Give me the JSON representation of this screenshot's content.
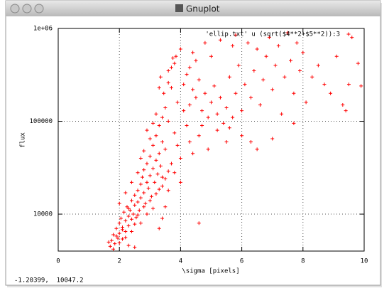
{
  "window": {
    "title": "Gnuplot",
    "status": "-1.20399,  10047.2"
  },
  "chart_data": {
    "type": "scatter",
    "xlabel": "\\sigma [pixels]",
    "ylabel": "flux",
    "xlim": [
      0,
      10
    ],
    "xticks": [
      0,
      2,
      4,
      6,
      8,
      10
    ],
    "ylim": [
      4000,
      1000000
    ],
    "yticks": [
      {
        "value": 1000000,
        "label": "1e+06"
      },
      100000,
      10000
    ],
    "log_y": true,
    "grid": true,
    "legend": "upper right",
    "series": [
      {
        "name": "'ellip.txt' u (sqrt($4**2+$5**2)):3",
        "color": "#ff0000",
        "x": [
          1.7,
          1.75,
          1.8,
          1.85,
          1.9,
          1.95,
          2.0,
          2.0,
          2.05,
          2.1,
          2.1,
          2.15,
          2.2,
          2.2,
          2.25,
          2.3,
          2.3,
          2.35,
          2.4,
          2.4,
          2.45,
          2.5,
          2.5,
          2.55,
          2.6,
          2.6,
          2.65,
          2.7,
          2.7,
          2.75,
          2.8,
          2.8,
          2.85,
          2.9,
          2.9,
          2.95,
          3.0,
          3.0,
          3.05,
          3.1,
          3.1,
          3.15,
          3.2,
          3.2,
          3.25,
          3.3,
          3.3,
          3.35,
          3.4,
          3.4,
          1.65,
          1.8,
          1.9,
          2.0,
          2.1,
          2.2,
          2.3,
          2.4,
          2.5,
          2.6,
          2.7,
          2.8,
          2.9,
          3.0,
          3.1,
          3.2,
          3.3,
          3.4,
          3.5,
          3.6,
          3.5,
          3.45,
          3.6,
          3.3,
          3.35,
          3.6,
          3.7,
          3.8,
          3.75,
          3.85,
          4.0,
          3.9,
          4.1,
          4.2,
          4.3,
          4.4,
          4.5,
          4.6,
          4.7,
          4.8,
          4.9,
          5.0,
          5.1,
          5.2,
          5.3,
          5.4,
          5.5,
          5.6,
          5.7,
          5.8,
          5.9,
          6.0,
          6.1,
          6.2,
          6.3,
          6.4,
          6.5,
          6.6,
          6.7,
          6.8,
          6.9,
          7.0,
          7.1,
          7.2,
          7.3,
          7.4,
          7.5,
          7.6,
          7.7,
          7.8,
          7.9,
          8.0,
          8.1,
          8.3,
          8.5,
          8.7,
          8.9,
          9.1,
          9.3,
          9.4,
          9.5,
          9.6,
          9.8,
          9.9,
          5.0,
          4.5,
          4.8,
          5.3,
          5.7,
          4.3,
          7.0,
          6.5,
          6.0,
          5.5,
          5.2,
          4.9,
          4.6,
          4.4,
          4.2,
          4.0,
          3.9,
          3.8,
          3.7,
          3.6,
          3.5,
          4.1,
          4.3,
          4.7,
          5.6,
          6.3,
          7.7,
          3.3,
          3.5,
          3.4,
          2.5,
          2.3,
          2.0,
          2.2,
          2.4,
          2.6,
          2.8,
          3.0,
          3.2,
          3.4,
          3.8,
          4.0,
          3.6,
          4.6,
          2.7,
          2.9,
          3.1,
          3.7,
          4.4,
          5.8
        ],
        "values": [
          4500,
          5200,
          6000,
          4800,
          7000,
          5500,
          8000,
          6200,
          9000,
          7200,
          5400,
          10500,
          8500,
          6500,
          12000,
          9500,
          7500,
          11000,
          14000,
          8800,
          10000,
          16000,
          12500,
          9200,
          18000,
          13500,
          11000,
          21000,
          15000,
          25000,
          17000,
          30000,
          13000,
          22000,
          35000,
          19000,
          26000,
          42000,
          15500,
          31000,
          55000,
          22000,
          38000,
          70000,
          27000,
          45000,
          90000,
          33000,
          60000,
          25000,
          5000,
          4200,
          5800,
          4900,
          6800,
          5600,
          11500,
          6500,
          7800,
          9800,
          8000,
          12000,
          10000,
          14000,
          11500,
          16500,
          18500,
          20000,
          24000,
          29000,
          140000,
          200000,
          260000,
          230000,
          300000,
          350000,
          380000,
          420000,
          480000,
          500000,
          600000,
          160000,
          250000,
          320000,
          150000,
          220000,
          180000,
          280000,
          130000,
          200000,
          110000,
          160000,
          240000,
          120000,
          180000,
          95000,
          140000,
          300000,
          110000,
          200000,
          400000,
          130000,
          250000,
          700000,
          180000,
          350000,
          600000,
          150000,
          280000,
          500000,
          800000,
          220000,
          400000,
          650000,
          120000,
          300000,
          900000,
          450000,
          200000,
          700000,
          350000,
          550000,
          160000,
          300000,
          400000,
          250000,
          200000,
          500000,
          150000,
          130000,
          250000,
          800000,
          420000,
          240000,
          500000,
          450000,
          700000,
          750000,
          650000,
          380000,
          65000,
          50000,
          70000,
          60000,
          80000,
          50000,
          70000,
          45000,
          90000,
          40000,
          55000,
          75000,
          35000,
          100000,
          50000,
          130000,
          60000,
          90000,
          85000,
          60000,
          95000,
          7000,
          12000,
          9000,
          4400,
          4600,
          13000,
          17000,
          22000,
          28000,
          48000,
          65000,
          120000,
          110000,
          28000,
          22000,
          18000,
          8000,
          40000,
          80000,
          95000,
          230000,
          550000,
          850000
        ]
      }
    ]
  }
}
